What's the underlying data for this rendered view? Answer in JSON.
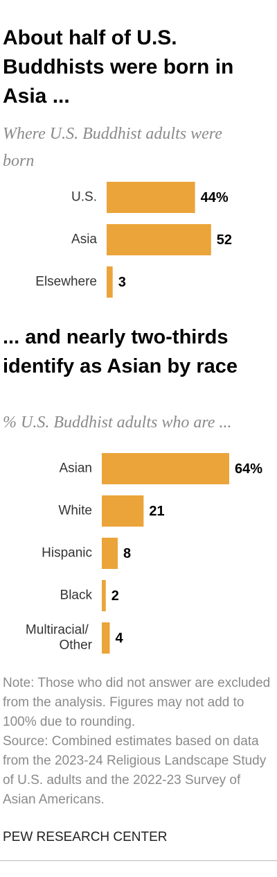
{
  "chart_data": [
    {
      "type": "bar",
      "title": "About half of U.S. Buddhists were born in Asia ...",
      "subtitle": "Where U.S. Buddhist adults were born",
      "categories": [
        "U.S.",
        "Asia",
        "Elsewhere"
      ],
      "values": [
        44,
        52,
        3
      ],
      "value_labels": [
        "44%",
        "52",
        "3"
      ],
      "color": "#eba43a"
    },
    {
      "type": "bar",
      "title": "... and nearly two-thirds identify as Asian by race",
      "subtitle": "% U.S. Buddhist adults who are ...",
      "categories": [
        "Asian",
        "White",
        "Hispanic",
        "Black",
        "Multiracial/ Other"
      ],
      "values": [
        64,
        21,
        8,
        2,
        4
      ],
      "value_labels": [
        "64%",
        "21",
        "8",
        "2",
        "4"
      ],
      "color": "#eba43a"
    }
  ],
  "note": "Note: Those who did not answer are excluded from the analysis. Figures may not add to 100% due to rounding.",
  "source": "Source: Combined estimates based on data from the 2023-24 Religious Landscape Study of U.S. adults and the 2022-23 Survey of Asian Americans.",
  "footer": "PEW RESEARCH CENTER"
}
